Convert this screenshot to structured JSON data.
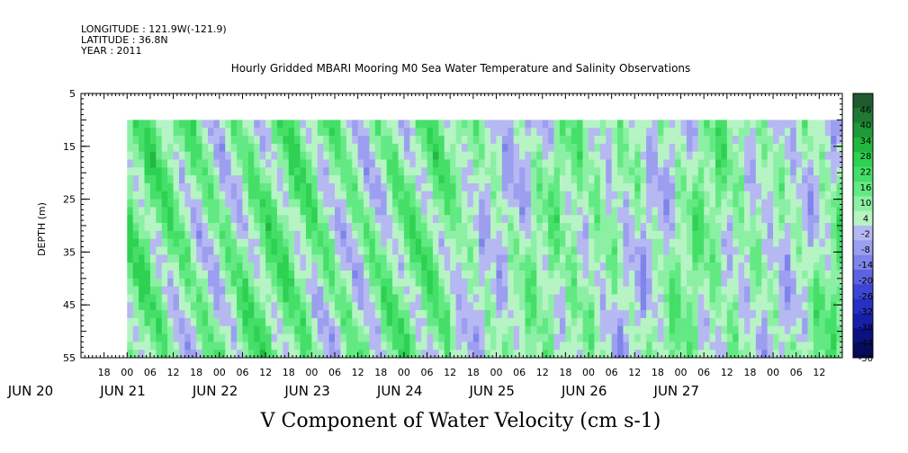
{
  "header": {
    "longitude": "LONGITUDE : 121.9W(-121.9)",
    "latitude": "LATITUDE : 36.8N",
    "year": "YEAR : 2011"
  },
  "chart_data": {
    "type": "heatmap",
    "title": "Hourly Gridded MBARI Mooring M0 Sea Water Temperature and Salinity Observations",
    "variable_label": "V Component of Water Velocity (cm s-1)",
    "ylabel": "DEPTH (m)",
    "y_ticks": [
      "5",
      "15",
      "25",
      "35",
      "45",
      "55"
    ],
    "y_tick_values": [
      5,
      15,
      25,
      35,
      45,
      55
    ],
    "ylim": [
      5,
      55
    ],
    "y_reversed": true,
    "data_depth_range": [
      10,
      55
    ],
    "x_hour_ticks": [
      "18",
      "00",
      "06",
      "12",
      "18",
      "00",
      "06",
      "12",
      "18",
      "00",
      "06",
      "12",
      "18",
      "00",
      "06",
      "12",
      "18",
      "00",
      "06",
      "12",
      "18",
      "00",
      "06",
      "12",
      "18",
      "00",
      "06",
      "12",
      "18",
      "00",
      "06",
      "12"
    ],
    "x_hour_tick_values": [
      -6,
      0,
      6,
      12,
      18,
      24,
      30,
      36,
      42,
      48,
      54,
      60,
      66,
      72,
      78,
      84,
      90,
      96,
      102,
      108,
      114,
      120,
      126,
      132,
      138,
      144,
      150,
      156,
      162,
      168,
      174,
      180
    ],
    "x_day_labels": [
      "JUN 20",
      "JUN 21",
      "JUN 22",
      "JUN 23",
      "JUN 24",
      "JUN 25",
      "JUN 26",
      "JUN 27"
    ],
    "x_day_label_hours": [
      -24,
      0,
      24,
      48,
      72,
      96,
      120,
      144
    ],
    "x_range_hours": [
      -12,
      186
    ],
    "data_x_range_hours": [
      0,
      186
    ],
    "colorbar_labels": [
      "46",
      "40",
      "34",
      "28",
      "22",
      "16",
      "10",
      "4",
      "-2",
      "-8",
      "-14",
      "-20",
      "-26",
      "-32",
      "-38",
      "-44",
      "-50"
    ],
    "colorbar_values": [
      46,
      40,
      34,
      28,
      22,
      16,
      10,
      4,
      -2,
      -8,
      -14,
      -20,
      -26,
      -32,
      -38,
      -44,
      -50
    ],
    "colorbar_colors": [
      "#1e5b2e",
      "#207a33",
      "#1e9a38",
      "#22b840",
      "#2ed152",
      "#45df68",
      "#63e983",
      "#8cf0a4",
      "#b6f4c4",
      "#b6b8f2",
      "#9c9ff0",
      "#7f84ea",
      "#5d63e0",
      "#3d45d4",
      "#2630c2",
      "#1520a8",
      "#0a1280",
      "#050a5a"
    ],
    "colorbar_range": [
      -50,
      52
    ]
  }
}
